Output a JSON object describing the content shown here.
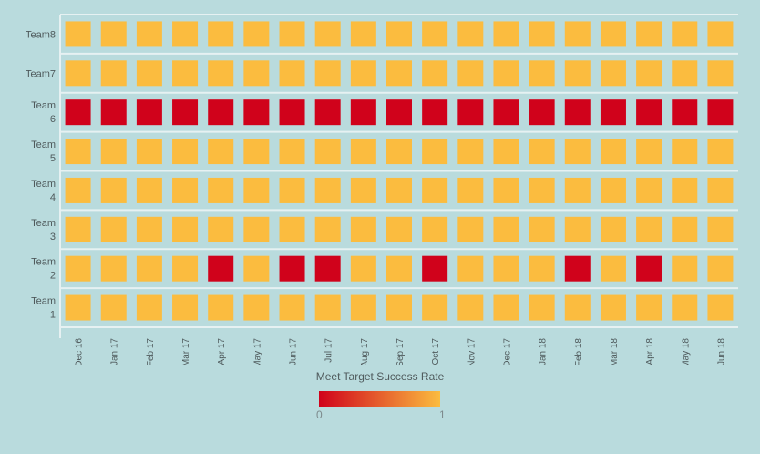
{
  "colors": {
    "background": "#b9dbdd",
    "grid": "#e6f1f2",
    "low": "#d0021b",
    "high": "#fbbc3f"
  },
  "chart_data": {
    "type": "heatmap",
    "x": [
      "Dec 16",
      "Jan 17",
      "Feb 17",
      "Mar 17",
      "Apr 17",
      "May 17",
      "Jun 17",
      "Jul 17",
      "Aug 17",
      "Sep 17",
      "Oct 17",
      "Nov 17",
      "Dec 17",
      "Jan 18",
      "Feb 18",
      "Mar 18",
      "Apr 18",
      "May 18",
      "Jun 18"
    ],
    "y": [
      {
        "label": [
          "Team8"
        ]
      },
      {
        "label": [
          "Team7"
        ]
      },
      {
        "label": [
          "Team",
          "6"
        ]
      },
      {
        "label": [
          "Team",
          "5"
        ]
      },
      {
        "label": [
          "Team",
          "4"
        ]
      },
      {
        "label": [
          "Team",
          "3"
        ]
      },
      {
        "label": [
          "Team",
          "2"
        ]
      },
      {
        "label": [
          "Team",
          "1"
        ]
      }
    ],
    "values": [
      [
        1,
        1,
        1,
        1,
        1,
        1,
        1,
        1,
        1,
        1,
        1,
        1,
        1,
        1,
        1,
        1,
        1,
        1,
        1
      ],
      [
        1,
        1,
        1,
        1,
        1,
        1,
        1,
        1,
        1,
        1,
        1,
        1,
        1,
        1,
        1,
        1,
        1,
        1,
        1
      ],
      [
        0,
        0,
        0,
        0,
        0,
        0,
        0,
        0,
        0,
        0,
        0,
        0,
        0,
        0,
        0,
        0,
        0,
        0,
        0
      ],
      [
        1,
        1,
        1,
        1,
        1,
        1,
        1,
        1,
        1,
        1,
        1,
        1,
        1,
        1,
        1,
        1,
        1,
        1,
        1
      ],
      [
        1,
        1,
        1,
        1,
        1,
        1,
        1,
        1,
        1,
        1,
        1,
        1,
        1,
        1,
        1,
        1,
        1,
        1,
        1
      ],
      [
        1,
        1,
        1,
        1,
        1,
        1,
        1,
        1,
        1,
        1,
        1,
        1,
        1,
        1,
        1,
        1,
        1,
        1,
        1
      ],
      [
        1,
        1,
        1,
        1,
        0,
        1,
        0,
        0,
        1,
        1,
        0,
        1,
        1,
        1,
        0,
        1,
        0,
        1,
        1
      ],
      [
        1,
        1,
        1,
        1,
        1,
        1,
        1,
        1,
        1,
        1,
        1,
        1,
        1,
        1,
        1,
        1,
        1,
        1,
        1
      ]
    ],
    "colorbar": {
      "title": "Meet Target Success Rate",
      "min_label": "0",
      "max_label": "1",
      "range": [
        0,
        1
      ]
    }
  }
}
